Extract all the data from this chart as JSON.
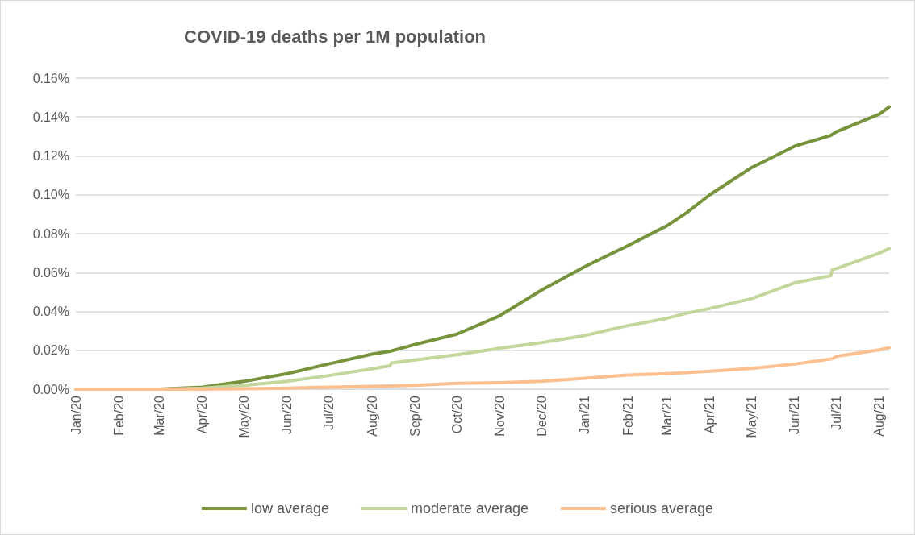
{
  "chart_data": {
    "type": "line",
    "title": "COVID-19 deaths per 1M population",
    "x": [
      "2020-01-01",
      "2020-02-01",
      "2020-03-01",
      "2020-04-01",
      "2020-05-01",
      "2020-06-01",
      "2020-07-01",
      "2020-08-01",
      "2020-08-14",
      "2020-08-15",
      "2020-09-01",
      "2020-10-01",
      "2020-11-01",
      "2020-12-01",
      "2021-01-01",
      "2021-02-01",
      "2021-03-01",
      "2021-03-15",
      "2021-04-01",
      "2021-05-01",
      "2021-06-01",
      "2021-06-27",
      "2021-06-28",
      "2021-07-01",
      "2021-08-01",
      "2021-08-08"
    ],
    "series": [
      {
        "name": "low average",
        "color": "#77933c",
        "values": [
          0,
          0,
          0,
          0.001,
          0.004,
          0.008,
          0.013,
          0.018,
          0.0195,
          0.0197,
          0.023,
          0.0283,
          0.0378,
          0.051,
          0.063,
          0.0738,
          0.084,
          0.0906,
          0.1,
          0.114,
          0.125,
          0.1305,
          0.131,
          0.1324,
          0.1415,
          0.1452
        ]
      },
      {
        "name": "moderate average",
        "color": "#c3d69b",
        "values": [
          0,
          0,
          0,
          0.0005,
          0.002,
          0.004,
          0.007,
          0.0105,
          0.012,
          0.0135,
          0.015,
          0.0177,
          0.021,
          0.0239,
          0.0276,
          0.0327,
          0.0364,
          0.039,
          0.0415,
          0.0466,
          0.0547,
          0.0584,
          0.0615,
          0.062,
          0.07,
          0.0723
        ]
      },
      {
        "name": "serious average",
        "color": "#fac090",
        "values": [
          0,
          0,
          0,
          0,
          0.0002,
          0.0005,
          0.001,
          0.0015,
          0.0017,
          0.0017,
          0.002,
          0.003,
          0.0033,
          0.004,
          0.0056,
          0.0073,
          0.008,
          0.0085,
          0.0092,
          0.0107,
          0.0129,
          0.0155,
          0.0156,
          0.0169,
          0.0202,
          0.0213
        ]
      }
    ],
    "xlim": [
      "2020-01-01",
      "2021-08-08"
    ],
    "xticks": [
      {
        "value": "2020-01-01",
        "label": "Jan/20"
      },
      {
        "value": "2020-02-01",
        "label": "Feb/20"
      },
      {
        "value": "2020-03-01",
        "label": "Mar/20"
      },
      {
        "value": "2020-04-01",
        "label": "Apr/20"
      },
      {
        "value": "2020-05-01",
        "label": "May/20"
      },
      {
        "value": "2020-06-01",
        "label": "Jun/20"
      },
      {
        "value": "2020-07-01",
        "label": "Jul/20"
      },
      {
        "value": "2020-08-01",
        "label": "Aug/20"
      },
      {
        "value": "2020-09-01",
        "label": "Sep/20"
      },
      {
        "value": "2020-10-01",
        "label": "Oct/20"
      },
      {
        "value": "2020-11-01",
        "label": "Nov/20"
      },
      {
        "value": "2020-12-01",
        "label": "Dec/20"
      },
      {
        "value": "2021-01-01",
        "label": "Jan/21"
      },
      {
        "value": "2021-02-01",
        "label": "Feb/21"
      },
      {
        "value": "2021-03-01",
        "label": "Mar/21"
      },
      {
        "value": "2021-04-01",
        "label": "Apr/21"
      },
      {
        "value": "2021-05-01",
        "label": "May/21"
      },
      {
        "value": "2021-06-01",
        "label": "Jun/21"
      },
      {
        "value": "2021-07-01",
        "label": "Jul/21"
      },
      {
        "value": "2021-08-01",
        "label": "Aug/21"
      }
    ],
    "ylim": [
      0,
      0.16
    ],
    "yticks": [
      {
        "value": 0,
        "label": "0.00%"
      },
      {
        "value": 0.02,
        "label": "0.02%"
      },
      {
        "value": 0.04,
        "label": "0.04%"
      },
      {
        "value": 0.06,
        "label": "0.06%"
      },
      {
        "value": 0.08,
        "label": "0.08%"
      },
      {
        "value": 0.1,
        "label": "0.10%"
      },
      {
        "value": 0.12,
        "label": "0.12%"
      },
      {
        "value": 0.14,
        "label": "0.14%"
      },
      {
        "value": 0.16,
        "label": "0.16%"
      }
    ],
    "grid": "y",
    "legend": "bottom",
    "marker": "none",
    "line_style": "solid"
  }
}
